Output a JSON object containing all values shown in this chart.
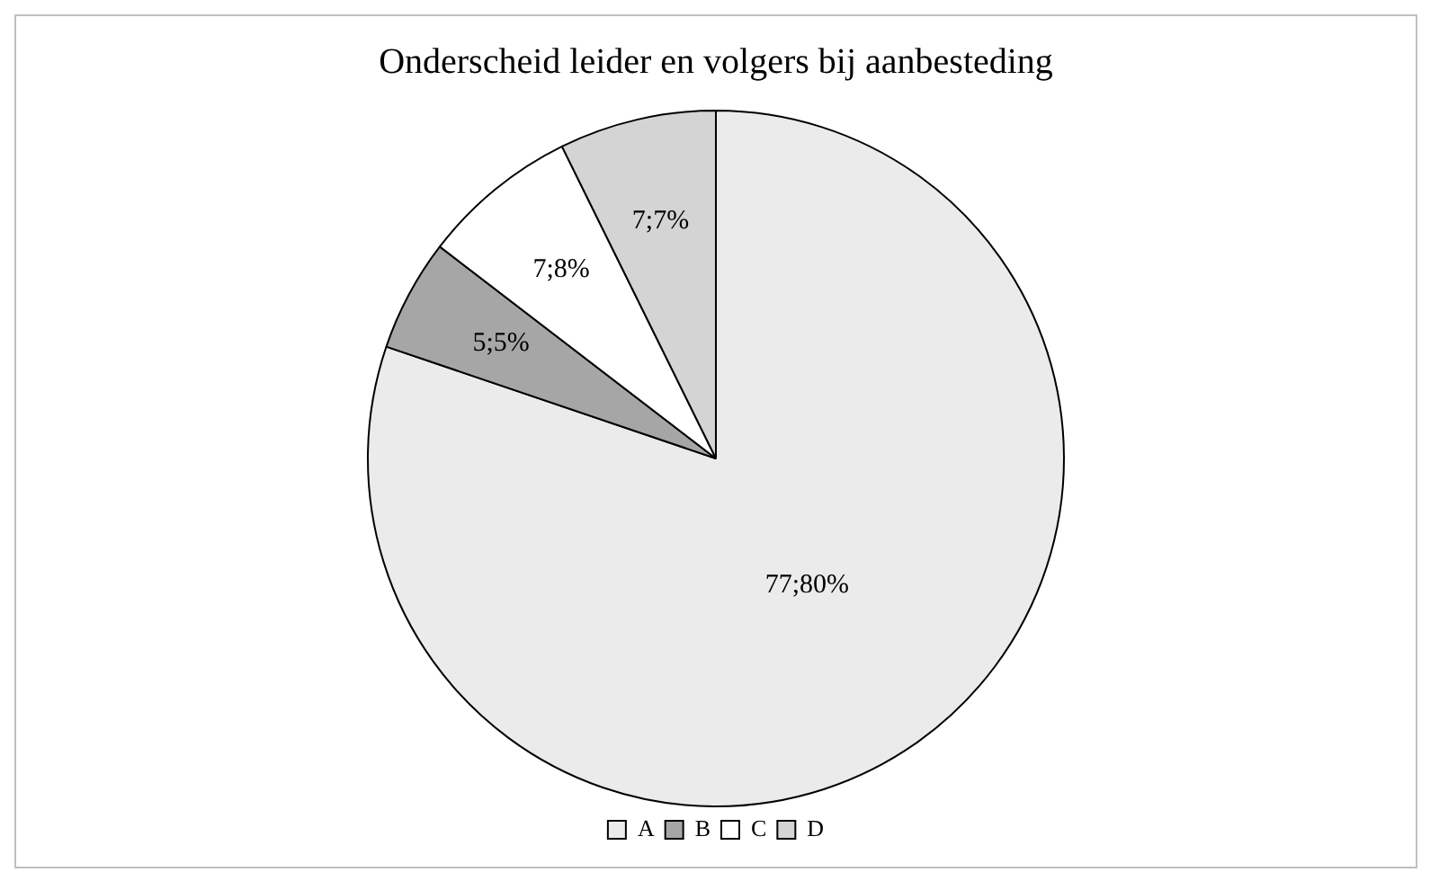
{
  "chart_data": {
    "type": "pie",
    "title": "Onderscheid leider en volgers bij aanbesteding",
    "categories": [
      "A",
      "B",
      "C",
      "D"
    ],
    "values": [
      77,
      5,
      7,
      7
    ],
    "colors": [
      "#ebebeb",
      "#a6a6a6",
      "#ffffff",
      "#d4d4d4"
    ],
    "value_labels": [
      "77;80%",
      "5;5%",
      "7;8%",
      "7;7%"
    ],
    "legend": "bottom"
  }
}
